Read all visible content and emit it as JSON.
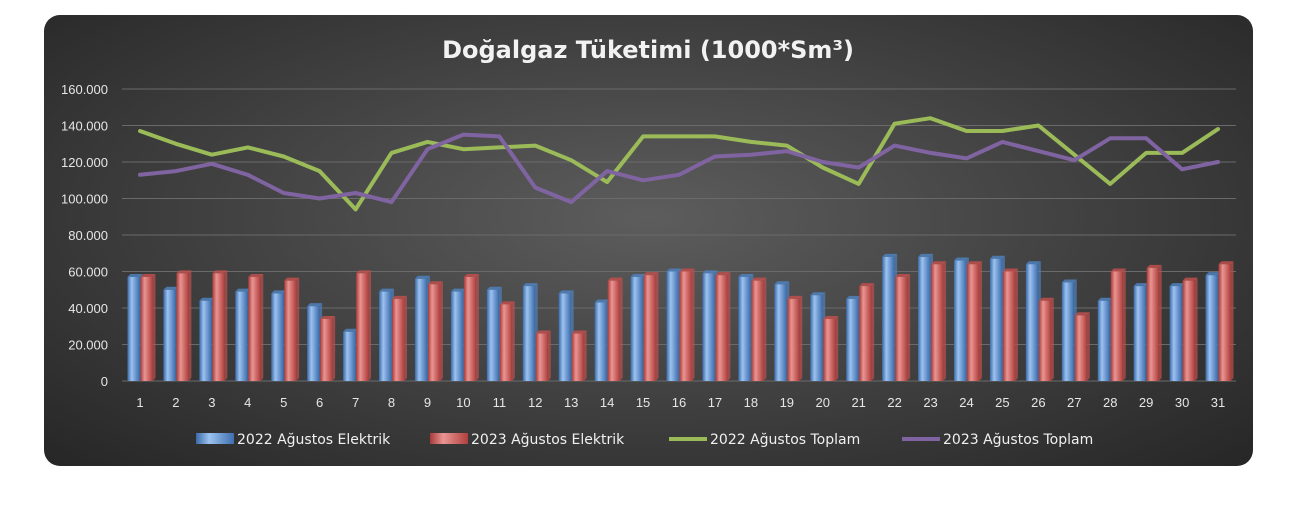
{
  "chart_data": {
    "type": "bar",
    "title": "Doğalgaz Tüketimi (1000*Sm³)",
    "xlabel": "",
    "ylabel": "",
    "ylim": [
      0,
      160000
    ],
    "yticks": [
      "0",
      "20.000",
      "40.000",
      "60.000",
      "80.000",
      "100.000",
      "120.000",
      "140.000",
      "160.000"
    ],
    "categories": [
      "1",
      "2",
      "3",
      "4",
      "5",
      "6",
      "7",
      "8",
      "9",
      "10",
      "11",
      "12",
      "13",
      "14",
      "15",
      "16",
      "17",
      "18",
      "19",
      "20",
      "21",
      "22",
      "23",
      "24",
      "25",
      "26",
      "27",
      "28",
      "29",
      "30",
      "31"
    ],
    "grid": true,
    "legend_position": "bottom",
    "series": [
      {
        "name": "2022 Ağustos Elektrik",
        "type": "bar",
        "color": "#4f81bd",
        "values": [
          57000,
          50000,
          44000,
          49000,
          48000,
          41000,
          27000,
          49000,
          56000,
          49000,
          50000,
          52000,
          48000,
          43000,
          57000,
          60000,
          59000,
          57000,
          53000,
          47000,
          45000,
          68000,
          68000,
          66000,
          67000,
          64000,
          54000,
          44000,
          52000,
          52000,
          58000
        ]
      },
      {
        "name": "2023 Ağustos Elektrik",
        "type": "bar",
        "color": "#c0504d",
        "values": [
          57000,
          59000,
          59000,
          57000,
          55000,
          34000,
          59000,
          45000,
          53000,
          57000,
          42000,
          26000,
          26000,
          55000,
          58000,
          60000,
          58000,
          55000,
          45000,
          34000,
          52000,
          57000,
          64000,
          64000,
          60000,
          44000,
          36000,
          60000,
          62000,
          55000,
          64000
        ]
      },
      {
        "name": "2022 Ağustos Toplam",
        "type": "line",
        "color": "#9bbb59",
        "values": [
          137000,
          130000,
          124000,
          128000,
          123000,
          115000,
          94000,
          125000,
          131000,
          127000,
          128000,
          129000,
          121000,
          109000,
          134000,
          134000,
          134000,
          131000,
          129000,
          117000,
          108000,
          141000,
          144000,
          137000,
          137000,
          140000,
          124000,
          108000,
          125000,
          125000,
          138000
        ]
      },
      {
        "name": "2023 Ağustos Toplam",
        "type": "line",
        "color": "#8064a2",
        "values": [
          113000,
          115000,
          119000,
          113000,
          103000,
          100000,
          103000,
          98000,
          127000,
          135000,
          134000,
          106000,
          98000,
          115000,
          110000,
          113000,
          123000,
          124000,
          126000,
          120000,
          117000,
          129000,
          125000,
          122000,
          131000,
          126000,
          121000,
          133000,
          133000,
          116000,
          120000
        ]
      }
    ]
  }
}
